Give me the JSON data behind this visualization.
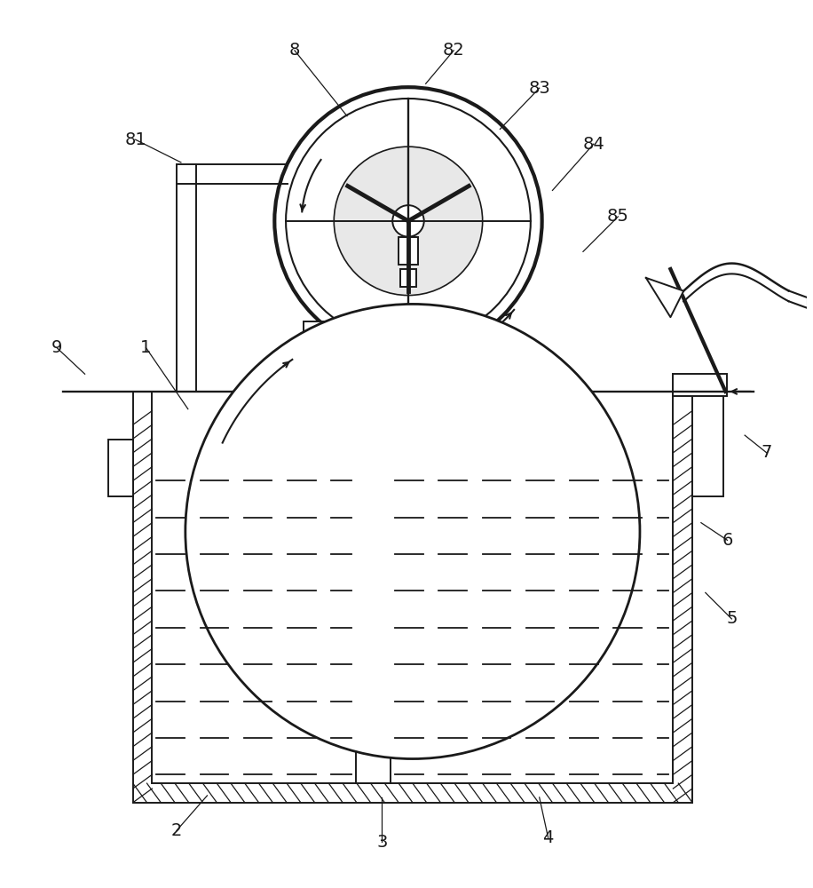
{
  "bg_color": "#ffffff",
  "line_color": "#1a1a1a",
  "lw": 1.4,
  "fig_w": 9.16,
  "fig_h": 10.0
}
